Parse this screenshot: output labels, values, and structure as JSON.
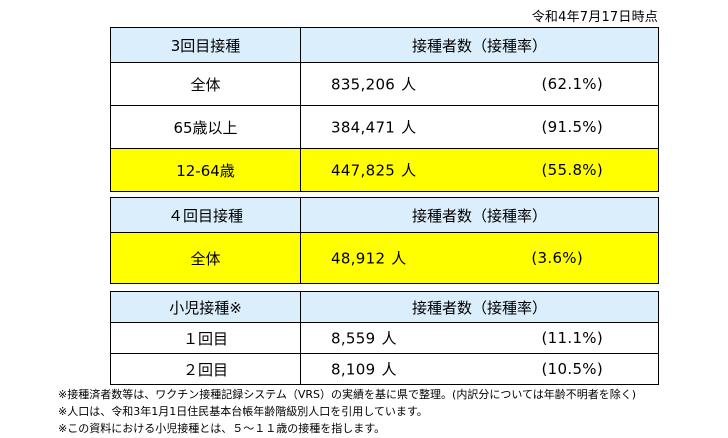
{
  "date_stamp": "令和4年7月17日時点",
  "third_dose": {
    "header": {
      "label": "3回目接種",
      "value_header": "接種者数（接種率）"
    },
    "rows": [
      {
        "label": "全体",
        "count": "835,206",
        "unit": "人",
        "rate": "(62.1%)"
      },
      {
        "label": "65歳以上",
        "count": "384,471",
        "unit": "人",
        "rate": "(91.5%)"
      },
      {
        "label": "12-64歳",
        "count": "447,825",
        "unit": "人",
        "rate": "(55.8%)"
      }
    ]
  },
  "fourth_dose": {
    "header": {
      "label": "４回目接種",
      "value_header": "接種者数（接種率）"
    },
    "rows": [
      {
        "label": "全体",
        "count": "48,912",
        "unit": "人",
        "rate": "(3.6%)"
      }
    ]
  },
  "child": {
    "header": {
      "label": "小児接種※",
      "value_header": "接種者数（接種率）"
    },
    "rows": [
      {
        "label": "１回目",
        "count": "8,559",
        "unit": "人",
        "rate": "(11.1%)"
      },
      {
        "label": "２回目",
        "count": "8,109",
        "unit": "人",
        "rate": "(10.5%)"
      }
    ]
  },
  "notes": [
    "※接種済者数等は、ワクチン接種記録システム（VRS）の実績を基に県で整理。(内訳分については年齢不明者を除く)",
    "※人口は、令和3年1月1日住民基本台帳年齢階級別人口を引用しています。",
    "※この資料における小児接種とは、５～１１歳の接種を指します。"
  ],
  "colors": {
    "header_bg": "#dbeefb",
    "highlight_bg": "#ffff00"
  }
}
